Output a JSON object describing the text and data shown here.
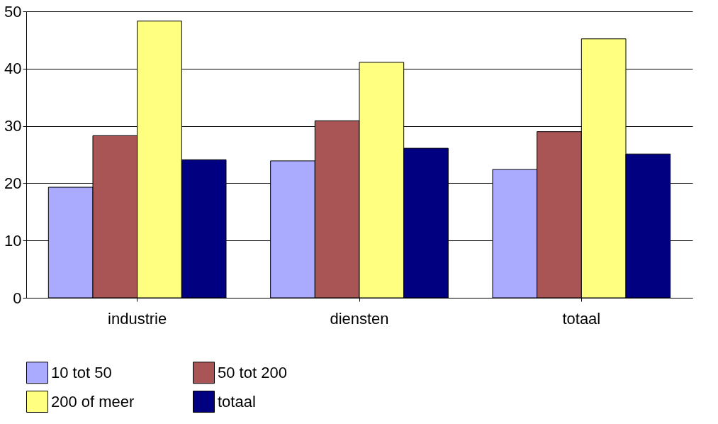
{
  "chart_data": {
    "type": "bar",
    "categories": [
      "industrie",
      "diensten",
      "totaal"
    ],
    "series": [
      {
        "name": "10 tot 50",
        "color": "#aaaaff",
        "values": [
          19.3,
          23.9,
          22.4
        ]
      },
      {
        "name": "50 tot 200",
        "color": "#aa5555",
        "values": [
          28.3,
          30.9,
          29.0
        ]
      },
      {
        "name": "200 of meer",
        "color": "#ffff80",
        "values": [
          48.3,
          41.1,
          45.2
        ]
      },
      {
        "name": "totaal",
        "color": "#000080",
        "values": [
          24.1,
          26.1,
          25.1
        ]
      }
    ],
    "ylim": [
      0,
      50
    ],
    "yticks": [
      0,
      10,
      20,
      30,
      40,
      50
    ],
    "grid": "y",
    "legend": "bottom"
  }
}
